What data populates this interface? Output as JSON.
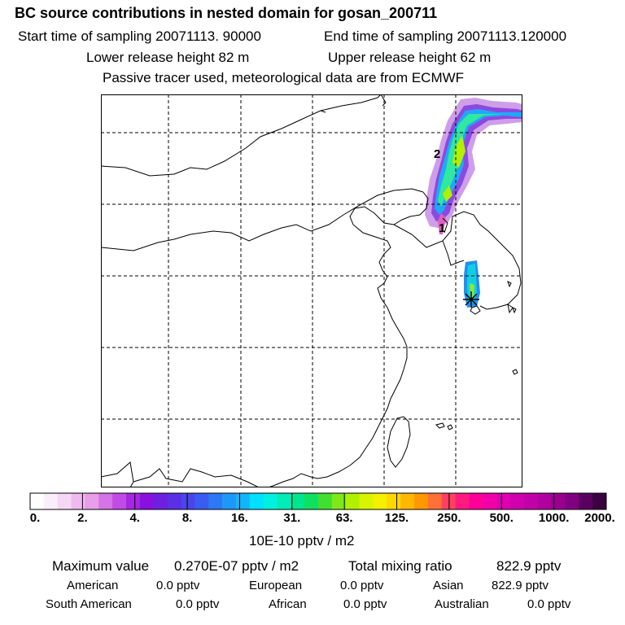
{
  "header": {
    "title": "BC  source contributions in nested domain for gosan_200711",
    "start_time": "Start time of sampling 20071113. 90000",
    "end_time": "End time of sampling 20071113.120000",
    "lower_height": "Lower release height   82 m",
    "upper_height": "Upper release height   62 m",
    "tracer_note": "Passive tracer used, meteorological data are from ECMWF"
  },
  "map": {
    "marker_labels": [
      "2",
      "1"
    ],
    "station_marker": "gosan-station-star"
  },
  "colorbar": {
    "ticks": [
      "0.",
      "2.",
      "4.",
      "8.",
      "16.",
      "31.",
      "63.",
      "125.",
      "250.",
      "500.",
      "1000.",
      "2000."
    ],
    "colors": [
      "#ffffff",
      "#fbeefb",
      "#f6d8f6",
      "#efbbef",
      "#e89ee8",
      "#d574e6",
      "#c24ae5",
      "#a526e3",
      "#8a10e0",
      "#6e1fe0",
      "#5b2fe6",
      "#4a44ec",
      "#3a5cf0",
      "#2c78f5",
      "#1e98f8",
      "#11b5fb",
      "#00e0ff",
      "#00f0e0",
      "#00ecb8",
      "#00e68e",
      "#10e060",
      "#40e030",
      "#80e818",
      "#b0f000",
      "#d8f400",
      "#f4f000",
      "#ffd800",
      "#ffb800",
      "#ff9800",
      "#ff7038",
      "#ff4060",
      "#ff1a80",
      "#ff0098",
      "#f000a8",
      "#e000b0",
      "#d000b0",
      "#c000a8",
      "#b000a0",
      "#9a0090",
      "#800080",
      "#5a0060",
      "#3a0040"
    ],
    "units": "10E-10 pptv / m2"
  },
  "summary": {
    "max_label": "Maximum value",
    "max_value": "0.270E-07 pptv / m2",
    "total_label": "Total mixing ratio",
    "total_value": "822.9 pptv",
    "contributions": [
      {
        "region": "American",
        "value": "0.0 pptv"
      },
      {
        "region": "European",
        "value": "0.0 pptv"
      },
      {
        "region": "Asian",
        "value": "822.9 pptv"
      },
      {
        "region": "South American",
        "value": "0.0 pptv"
      },
      {
        "region": "African",
        "value": "0.0 pptv"
      },
      {
        "region": "Australian",
        "value": "0.0 pptv"
      }
    ]
  }
}
